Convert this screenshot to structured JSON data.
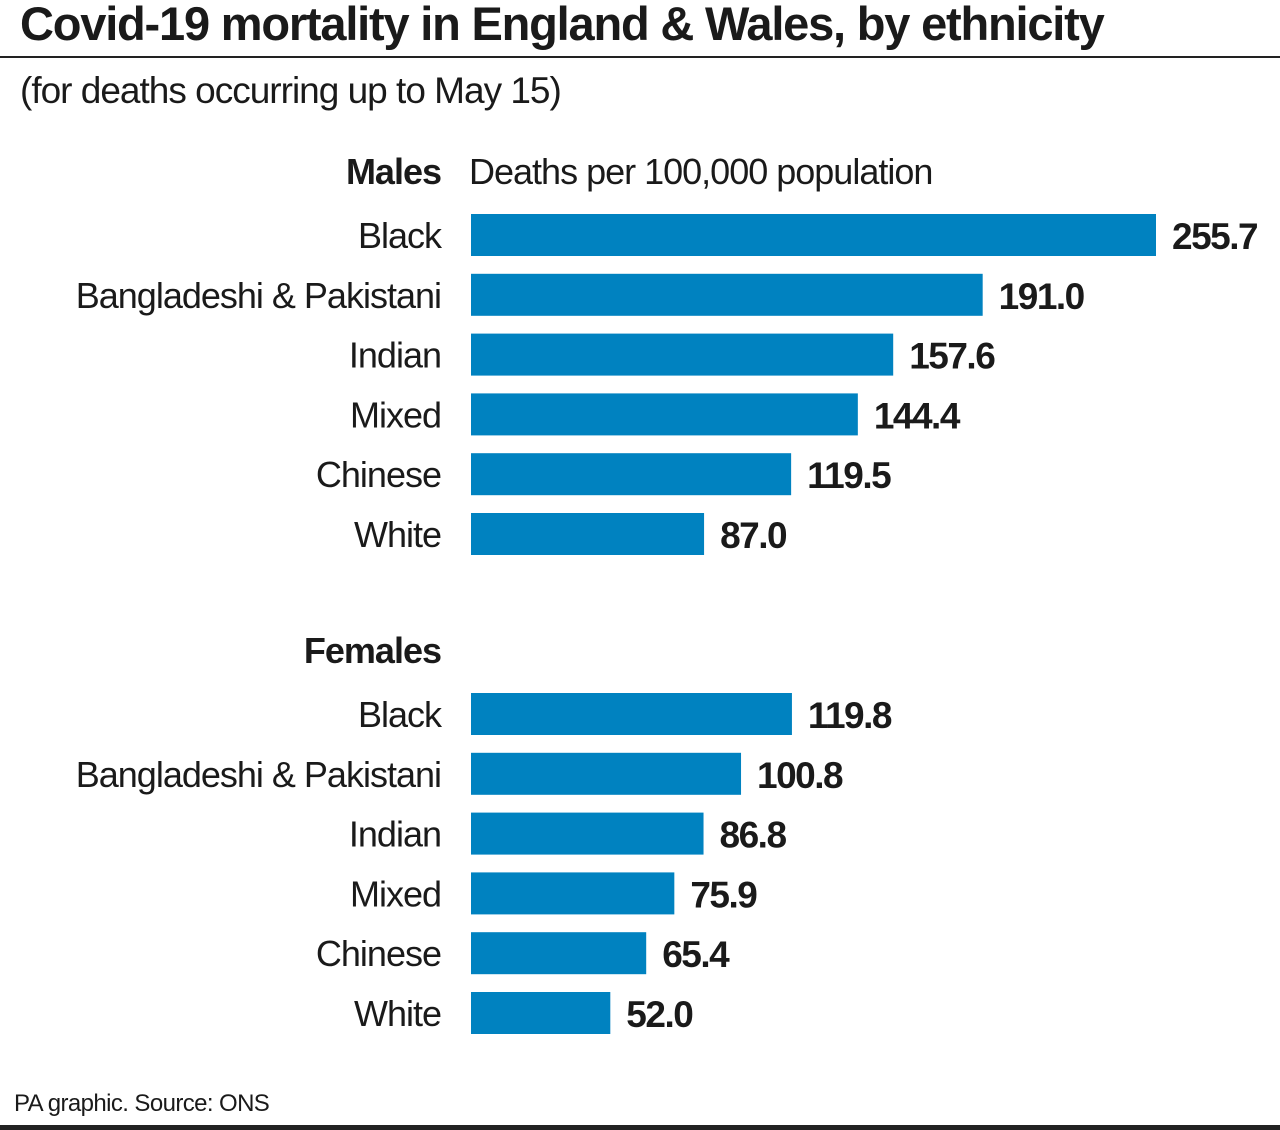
{
  "chart_data": {
    "type": "bar",
    "orientation": "horizontal",
    "title": "Covid-19 mortality in England & Wales, by ethnicity",
    "subtitle": "(for deaths occurring up to May 15)",
    "xlabel": "Deaths per 100,000 population",
    "bar_color": "#0082c0",
    "grid": false,
    "groups": [
      {
        "name": "Males",
        "categories": [
          "Black",
          "Bangladeshi & Pakistani",
          "Indian",
          "Mixed",
          "Chinese",
          "White"
        ],
        "values": [
          255.7,
          191.0,
          157.6,
          144.4,
          119.5,
          87.0
        ],
        "labels": [
          "255.7",
          "191.0",
          "157.6",
          "144.4",
          "119.5",
          "87.0"
        ]
      },
      {
        "name": "Females",
        "categories": [
          "Black",
          "Bangladeshi & Pakistani",
          "Indian",
          "Mixed",
          "Chinese",
          "White"
        ],
        "values": [
          119.8,
          100.8,
          86.8,
          75.9,
          65.4,
          52.0
        ],
        "labels": [
          "119.8",
          "100.8",
          "86.8",
          "75.9",
          "65.4",
          "52.0"
        ]
      }
    ],
    "source": "PA graphic. Source: ONS"
  }
}
